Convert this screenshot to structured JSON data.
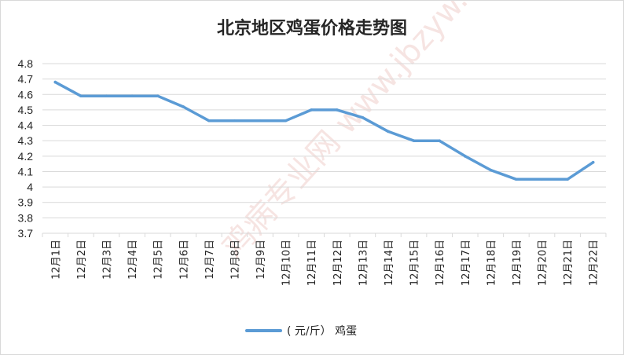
{
  "chart_data": {
    "type": "line",
    "title": "北京地区鸡蛋价格走势图",
    "categories": [
      "12月1日",
      "12月2日",
      "12月3日",
      "12月4日",
      "12月5日",
      "12月6日",
      "12月7日",
      "12月8日",
      "12月9日",
      "12月10日",
      "12月11日",
      "12月12日",
      "12月13日",
      "12月14日",
      "12月15日",
      "12月16日",
      "12月17日",
      "12月18日",
      "12月19日",
      "12月20日",
      "12月21日",
      "12月22日"
    ],
    "series": [
      {
        "name": "( 元/斤） 鸡蛋",
        "color": "#5b9bd5",
        "values": [
          4.68,
          4.59,
          4.59,
          4.59,
          4.59,
          4.52,
          4.43,
          4.43,
          4.43,
          4.43,
          4.5,
          4.5,
          4.45,
          4.36,
          4.3,
          4.3,
          4.2,
          4.11,
          4.05,
          4.05,
          4.05,
          4.16
        ]
      }
    ],
    "ylim": [
      3.7,
      4.8
    ],
    "yticks": [
      "4.8",
      "4.7",
      "4.6",
      "4.5",
      "4.4",
      "4.3",
      "4.2",
      "4.1",
      "4",
      "3.9",
      "3.8",
      "3.7"
    ],
    "xlabel": "",
    "ylabel": "",
    "grid": true,
    "legend_position": "bottom"
  },
  "watermark": {
    "text": "鸡病专业网 www.jbzyw.com"
  },
  "colors": {
    "gridline": "#d9d9d9",
    "axis": "#d9d9d9",
    "text": "#262626",
    "watermark": "#e8b4ae"
  }
}
